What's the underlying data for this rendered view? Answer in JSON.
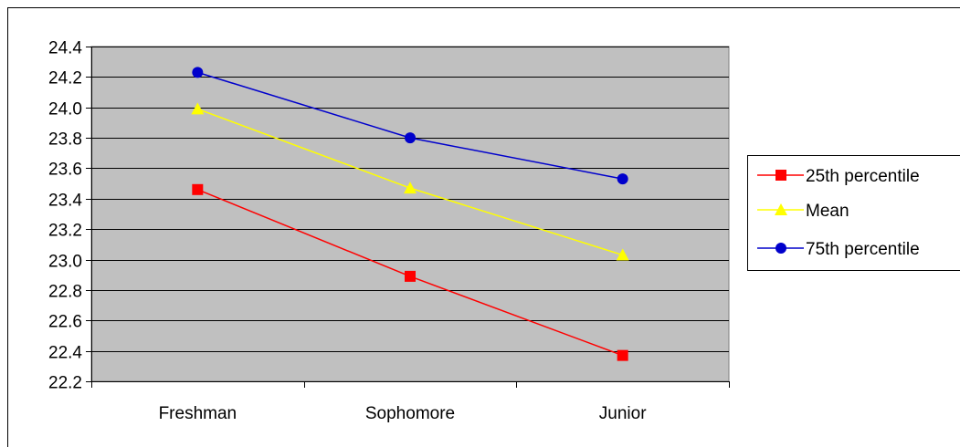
{
  "chart_data": {
    "type": "line",
    "categories": [
      "Freshman",
      "Sophomore",
      "Junior"
    ],
    "series": [
      {
        "name": "25th percentile",
        "values": [
          23.46,
          22.89,
          22.37
        ],
        "color": "#ff0000",
        "marker": "square"
      },
      {
        "name": "Mean",
        "values": [
          23.99,
          23.47,
          23.03
        ],
        "color": "#ffff00",
        "marker": "triangle"
      },
      {
        "name": "75th percentile",
        "values": [
          24.23,
          23.8,
          23.53
        ],
        "color": "#0000cc",
        "marker": "circle"
      }
    ],
    "ylim": [
      22.2,
      24.4
    ],
    "yticks": [
      "22.2",
      "22.4",
      "22.6",
      "22.8",
      "23.0",
      "23.2",
      "23.4",
      "23.6",
      "23.8",
      "24.0",
      "24.2",
      "24.4"
    ],
    "grid": true,
    "legend_position": "right",
    "plot_background": "#c0c0c0"
  }
}
